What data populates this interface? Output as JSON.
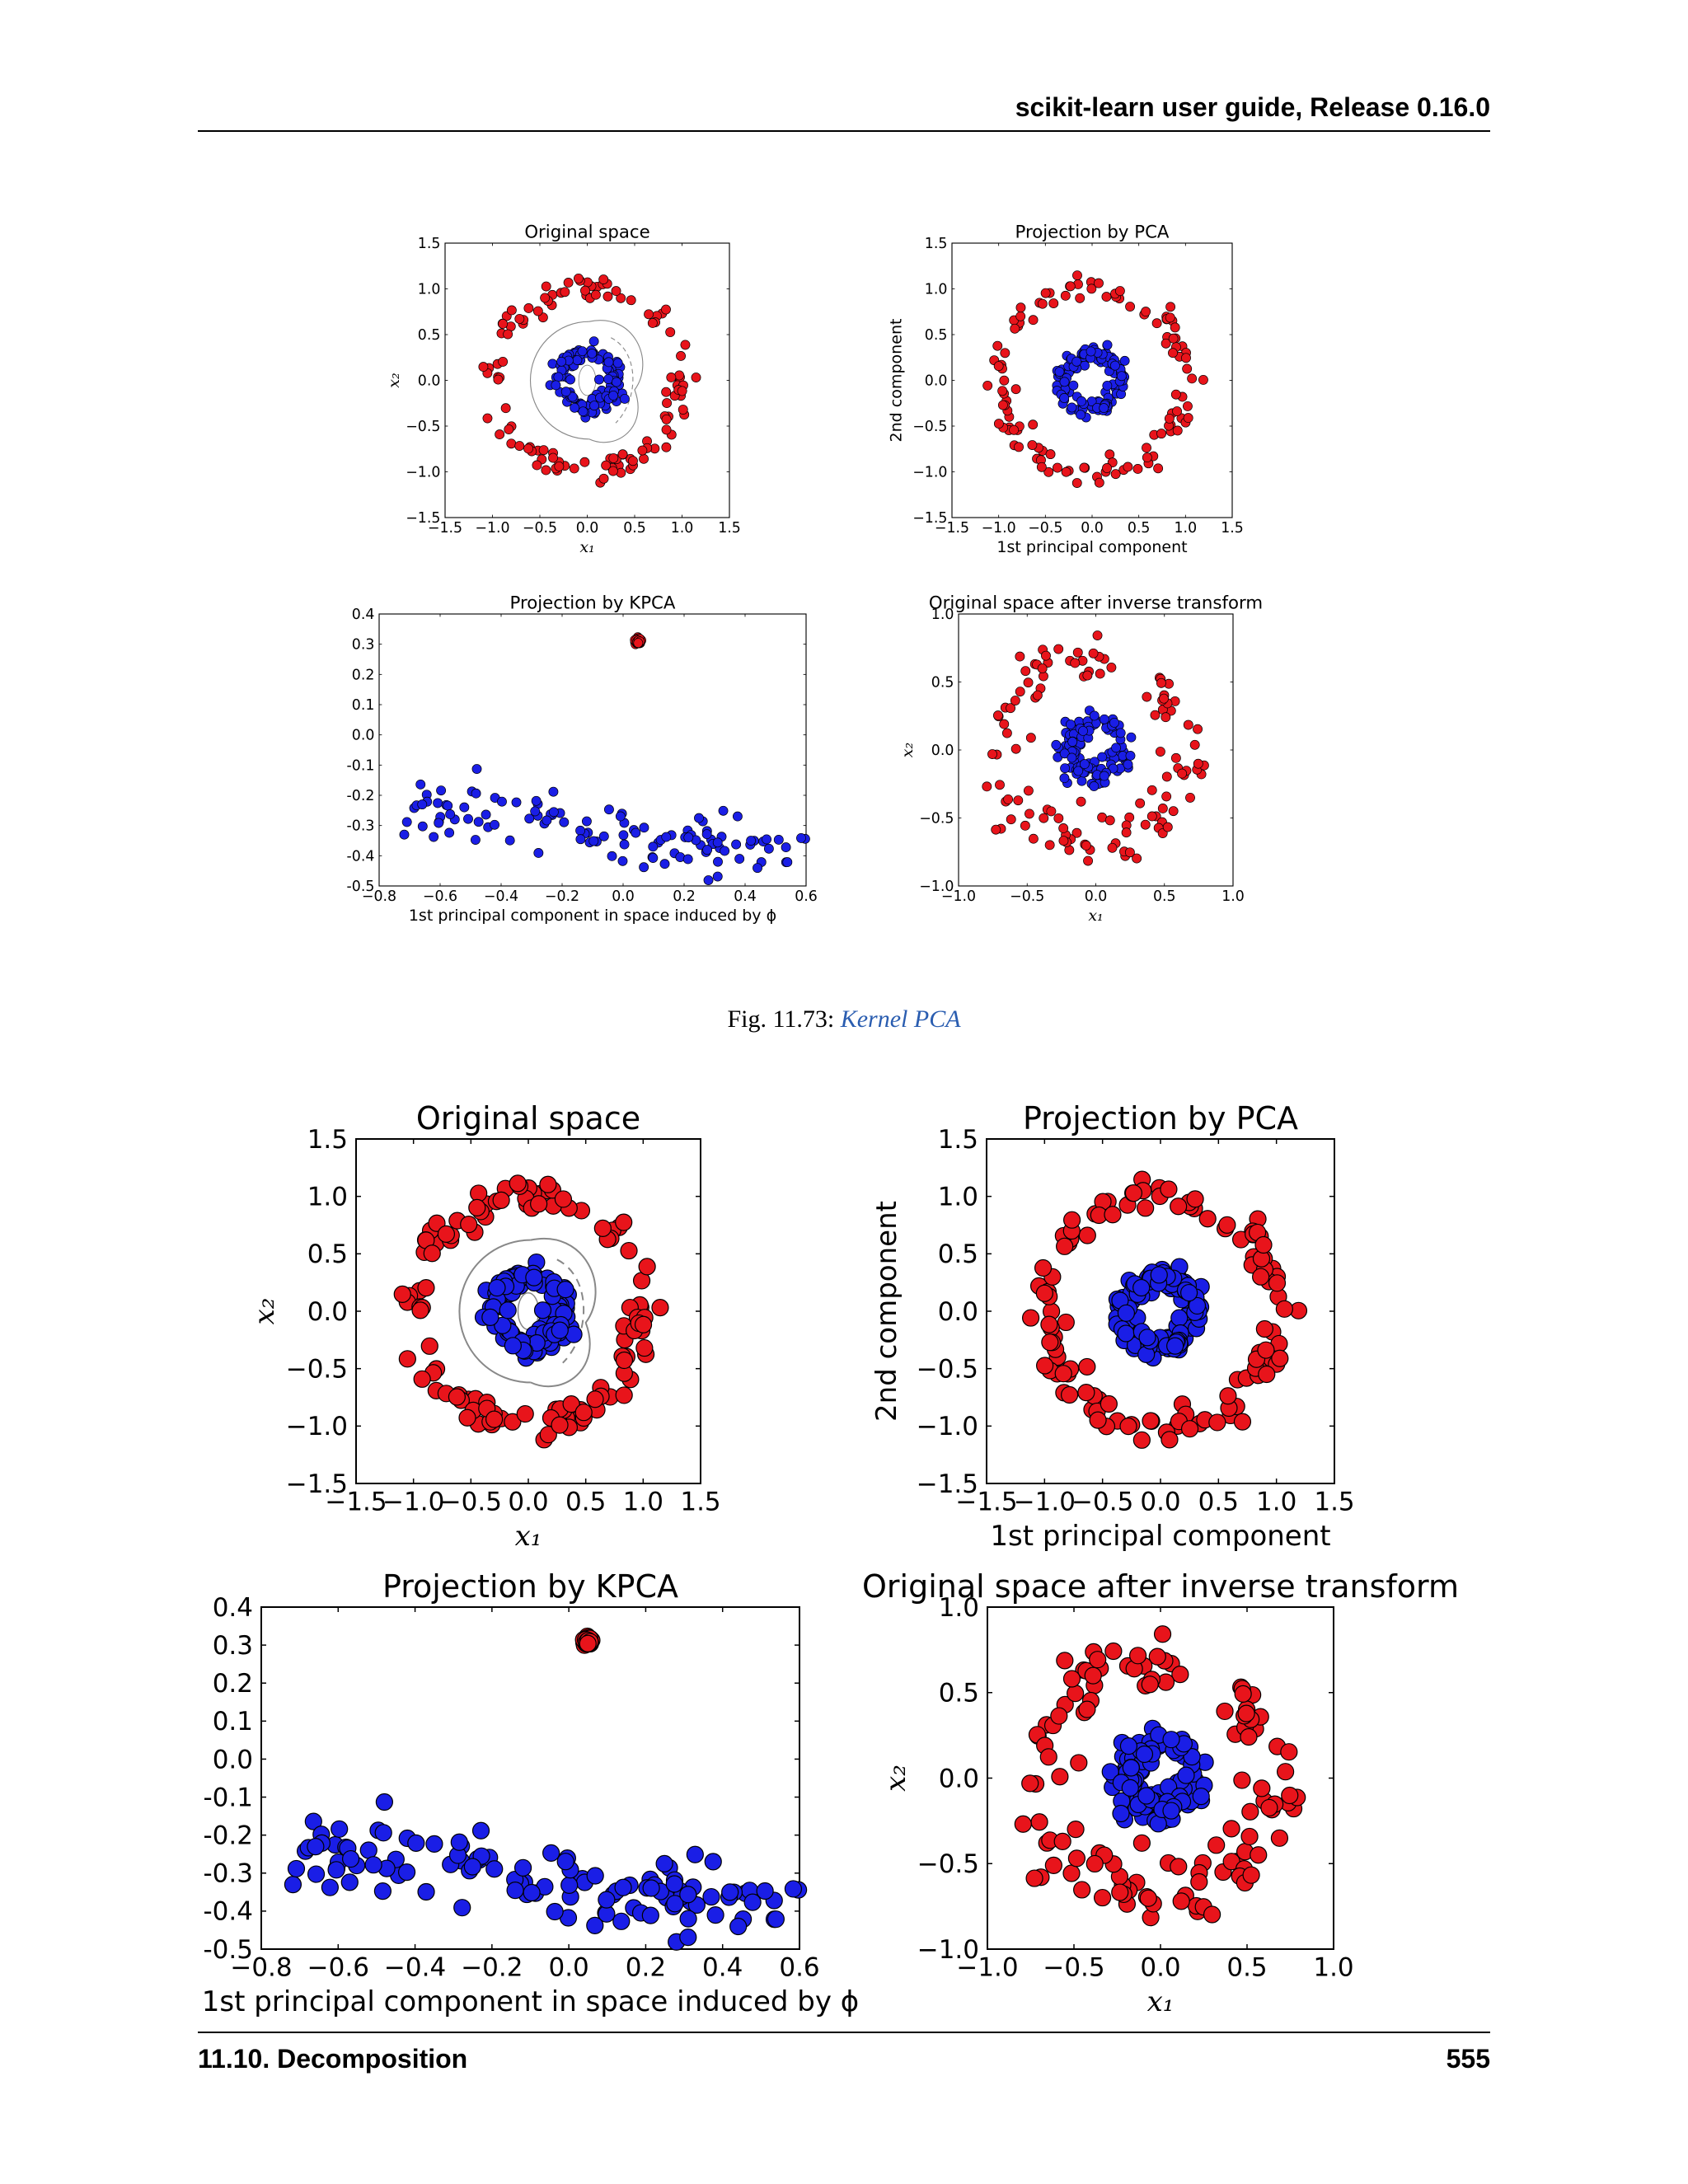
{
  "header": {
    "running_title": "scikit-learn user guide, Release 0.16.0"
  },
  "footer": {
    "section": "11.10.  Decomposition",
    "page_number": "555"
  },
  "caption": {
    "prefix": "Fig.  11.73: ",
    "link_text": "Kernel PCA"
  },
  "colors": {
    "red": "#e8141b",
    "blue": "#1a1ee6",
    "contour": "#888888"
  },
  "figures_note": "two renderings of the same 2x2 figure (small upper copy, large lower copy)",
  "chart_data": [
    {
      "type": "scatter",
      "title": "Original space",
      "xlabel": "x₁",
      "ylabel": "x₂",
      "xlim": [
        -1.5,
        1.5
      ],
      "ylim": [
        -1.5,
        1.5
      ],
      "xticks": [
        "−1.5",
        "−1.0",
        "−0.5",
        "0.0",
        "0.5",
        "1.0",
        "1.5"
      ],
      "yticks": [
        "1.5",
        "1.0",
        "0.5",
        "0.0",
        "−0.5",
        "−1.0",
        "−1.5"
      ],
      "series": [
        {
          "color": "red",
          "shape": "ring",
          "radius": 1.0,
          "noise": 0.07,
          "count": 120
        },
        {
          "color": "blue",
          "shape": "ring",
          "radius": 0.3,
          "noise": 0.05,
          "count": 120
        }
      ],
      "contours": true
    },
    {
      "type": "scatter",
      "title": "Projection by PCA",
      "xlabel": "1st principal component",
      "ylabel": "2nd component",
      "xlim": [
        -1.5,
        1.5
      ],
      "ylim": [
        -1.5,
        1.5
      ],
      "xticks": [
        "−1.5",
        "−1.0",
        "−0.5",
        "0.0",
        "0.5",
        "1.0",
        "1.5"
      ],
      "yticks": [
        "1.5",
        "1.0",
        "0.5",
        "0.0",
        "−0.5",
        "−1.0",
        "−1.5"
      ],
      "series": [
        {
          "color": "red",
          "shape": "ring",
          "radius": 1.0,
          "noise": 0.07,
          "count": 120
        },
        {
          "color": "blue",
          "shape": "ring",
          "radius": 0.3,
          "noise": 0.05,
          "count": 120
        }
      ]
    },
    {
      "type": "scatter",
      "title": "Projection by KPCA",
      "xlabel": "1st principal component in space induced by ϕ",
      "ylabel": "",
      "xlim": [
        -0.8,
        0.6
      ],
      "ylim": [
        -0.5,
        0.4
      ],
      "xticks": [
        "−0.8",
        "−0.6",
        "−0.4",
        "−0.2",
        "0.0",
        "0.2",
        "0.4",
        "0.6"
      ],
      "yticks": [
        "0.4",
        "0.3",
        "0.2",
        "0.1",
        "0.0",
        "-0.1",
        "-0.2",
        "-0.3",
        "-0.4",
        "-0.5"
      ],
      "series": [
        {
          "color": "red",
          "shape": "cluster",
          "x": 0.05,
          "y": 0.31,
          "count": 120
        },
        {
          "color": "blue",
          "shape": "band",
          "x_range": [
            -0.72,
            0.6
          ],
          "y_start": -0.24,
          "y_end": -0.4,
          "spread": 0.09,
          "count": 120
        }
      ]
    },
    {
      "type": "scatter",
      "title": "Original space after inverse transform",
      "xlabel": "x₁",
      "ylabel": "x₂",
      "xlim": [
        -1.0,
        1.0
      ],
      "ylim": [
        -1.0,
        1.0
      ],
      "xticks": [
        "−1.0",
        "−0.5",
        "0.0",
        "0.5",
        "1.0"
      ],
      "yticks": [
        "1.0",
        "0.5",
        "0.0",
        "−0.5",
        "−1.0"
      ],
      "series": [
        {
          "color": "red",
          "shape": "ring",
          "radius": 0.68,
          "noise": 0.1,
          "count": 120
        },
        {
          "color": "blue",
          "shape": "ring",
          "radius": 0.2,
          "noise": 0.05,
          "count": 120
        }
      ]
    }
  ]
}
